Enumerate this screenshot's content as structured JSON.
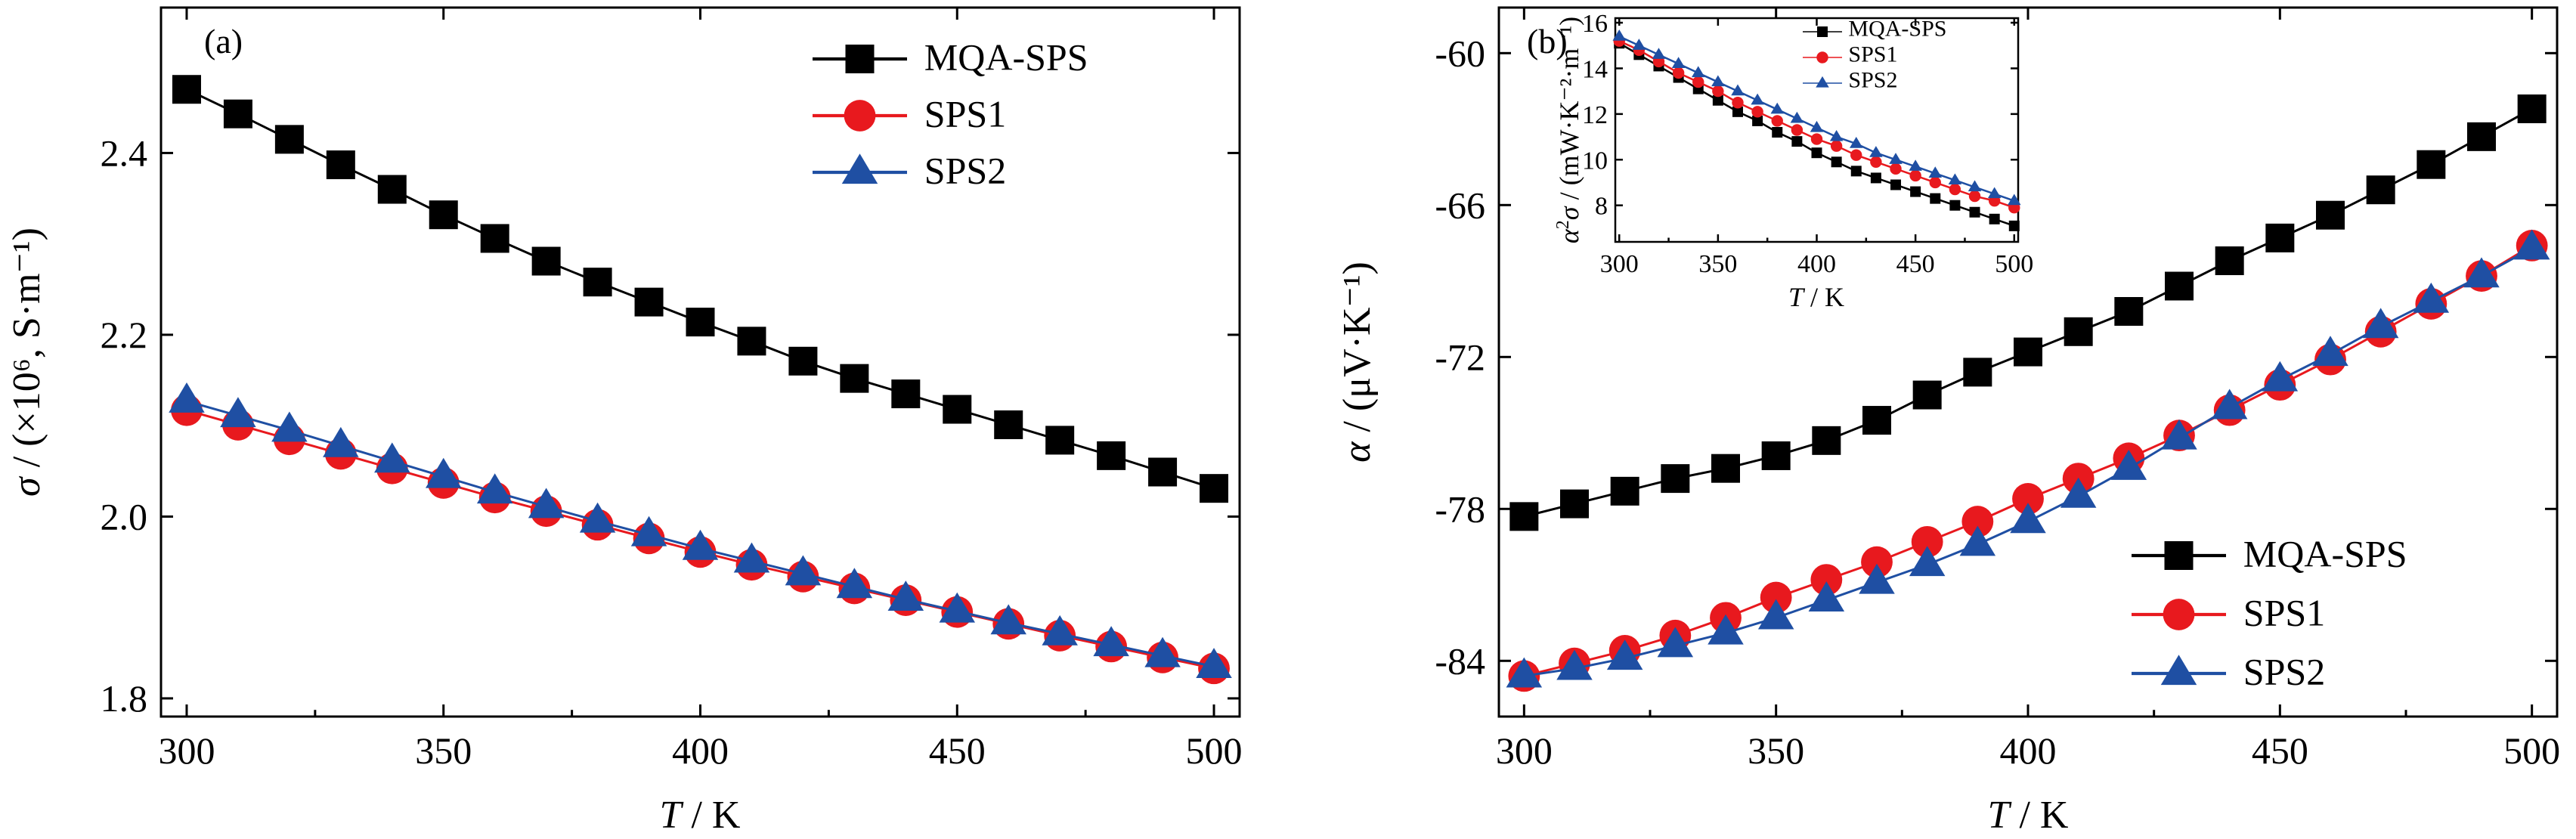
{
  "chart_data": [
    {
      "type": "line",
      "panel_label": "(a)",
      "xlabel_italic": "T",
      "xlabel_rest": " / K",
      "ylabel_symbol": "σ",
      "ylabel_rest": " / (×10⁶, S·m⁻¹)",
      "xlim": [
        295,
        505
      ],
      "ylim": [
        1.78,
        2.56
      ],
      "xticks": [
        300,
        350,
        400,
        450,
        500
      ],
      "yticks": [
        1.8,
        2.0,
        2.2,
        2.4
      ],
      "ytick_labels": [
        "1.8",
        "2.0",
        "2.2",
        "2.4"
      ],
      "legend_position": "top-right",
      "x": [
        300,
        310,
        320,
        330,
        340,
        350,
        360,
        370,
        380,
        390,
        400,
        410,
        420,
        430,
        440,
        450,
        460,
        470,
        480,
        490,
        500
      ],
      "series": [
        {
          "name": "MQA-SPS",
          "marker": "square",
          "color": "#000000",
          "values": [
            2.47,
            2.443,
            2.415,
            2.387,
            2.36,
            2.332,
            2.306,
            2.281,
            2.258,
            2.236,
            2.214,
            2.193,
            2.171,
            2.152,
            2.135,
            2.118,
            2.101,
            2.084,
            2.067,
            2.049,
            2.031
          ]
        },
        {
          "name": "SPS1",
          "marker": "circle",
          "color": "#e8191e",
          "values": [
            2.117,
            2.101,
            2.085,
            2.069,
            2.053,
            2.037,
            2.021,
            2.006,
            1.991,
            1.976,
            1.961,
            1.947,
            1.934,
            1.921,
            1.908,
            1.895,
            1.882,
            1.869,
            1.857,
            1.845,
            1.833
          ]
        },
        {
          "name": "SPS2",
          "marker": "triangle",
          "color": "#1f4fa3",
          "values": [
            2.127,
            2.111,
            2.095,
            2.078,
            2.061,
            2.044,
            2.027,
            2.011,
            1.995,
            1.98,
            1.965,
            1.951,
            1.937,
            1.923,
            1.909,
            1.896,
            1.883,
            1.871,
            1.859,
            1.847,
            1.835
          ]
        }
      ]
    },
    {
      "type": "line",
      "panel_label": "(b)",
      "xlabel_italic": "T",
      "xlabel_rest": " / K",
      "ylabel_symbol": "α",
      "ylabel_rest": " / (μV·K⁻¹)",
      "xlim": [
        295,
        505
      ],
      "ylim": [
        -86.2,
        -58.2
      ],
      "xticks": [
        300,
        350,
        400,
        450,
        500
      ],
      "yticks": [
        -84,
        -78,
        -72,
        -66,
        -60
      ],
      "ytick_labels": [
        "-84",
        "-78",
        "-72",
        "-66",
        "-60"
      ],
      "legend_position": "bottom-right",
      "x": [
        300,
        310,
        320,
        330,
        340,
        350,
        360,
        370,
        380,
        390,
        400,
        410,
        420,
        430,
        440,
        450,
        460,
        470,
        480,
        490,
        500
      ],
      "series": [
        {
          "name": "MQA-SPS",
          "marker": "square",
          "color": "#000000",
          "values": [
            -78.3,
            -77.8,
            -77.3,
            -76.8,
            -76.4,
            -75.9,
            -75.3,
            -74.5,
            -73.5,
            -72.6,
            -71.8,
            -71.0,
            -70.2,
            -69.2,
            -68.2,
            -67.3,
            -66.4,
            -65.4,
            -64.4,
            -63.3,
            -62.2
          ]
        },
        {
          "name": "SPS1",
          "marker": "circle",
          "color": "#e8191e",
          "values": [
            -84.6,
            -84.1,
            -83.6,
            -83.0,
            -82.3,
            -81.5,
            -80.8,
            -80.1,
            -79.3,
            -78.5,
            -77.6,
            -76.8,
            -76.0,
            -75.1,
            -74.1,
            -73.1,
            -72.1,
            -71.0,
            -69.9,
            -68.8,
            -67.6
          ]
        },
        {
          "name": "SPS2",
          "marker": "triangle",
          "color": "#1f4fa3",
          "values": [
            -84.6,
            -84.3,
            -83.9,
            -83.4,
            -82.9,
            -82.3,
            -81.6,
            -80.9,
            -80.2,
            -79.4,
            -78.5,
            -77.5,
            -76.4,
            -75.2,
            -74.0,
            -72.9,
            -71.9,
            -70.8,
            -69.8,
            -68.8,
            -67.7
          ]
        }
      ],
      "inset": {
        "type": "line",
        "xlabel_italic": "T",
        "xlabel_rest": " / K",
        "ylabel_sup": "2",
        "ylabel_rest": " / (mW·K⁻²·m⁻¹)",
        "xlim": [
          298,
          502
        ],
        "ylim": [
          6.4,
          16.2
        ],
        "xticks": [
          300,
          350,
          400,
          450,
          500
        ],
        "yticks": [
          8,
          10,
          12,
          14,
          16
        ],
        "legend_position": "top-right",
        "x": [
          300,
          310,
          320,
          330,
          340,
          350,
          360,
          370,
          380,
          390,
          400,
          410,
          420,
          430,
          440,
          450,
          460,
          470,
          480,
          490,
          500
        ],
        "series": [
          {
            "name": "MQA-SPS",
            "marker": "square",
            "color": "#000000",
            "values": [
              15.1,
              14.6,
              14.1,
              13.6,
              13.1,
              12.6,
              12.1,
              11.7,
              11.2,
              10.8,
              10.3,
              9.9,
              9.5,
              9.2,
              8.9,
              8.6,
              8.3,
              8.0,
              7.7,
              7.4,
              7.1
            ]
          },
          {
            "name": "SPS1",
            "marker": "circle",
            "color": "#e8191e",
            "values": [
              15.2,
              14.8,
              14.3,
              13.8,
              13.4,
              13.0,
              12.5,
              12.1,
              11.7,
              11.3,
              10.9,
              10.6,
              10.2,
              9.9,
              9.6,
              9.3,
              9.0,
              8.7,
              8.4,
              8.2,
              7.9
            ]
          },
          {
            "name": "SPS2",
            "marker": "triangle",
            "color": "#1f4fa3",
            "values": [
              15.4,
              15.0,
              14.6,
              14.2,
              13.8,
              13.4,
              13.0,
              12.6,
              12.2,
              11.8,
              11.4,
              11.0,
              10.7,
              10.3,
              10.0,
              9.7,
              9.4,
              9.1,
              8.8,
              8.5,
              8.2
            ]
          }
        ]
      }
    }
  ]
}
